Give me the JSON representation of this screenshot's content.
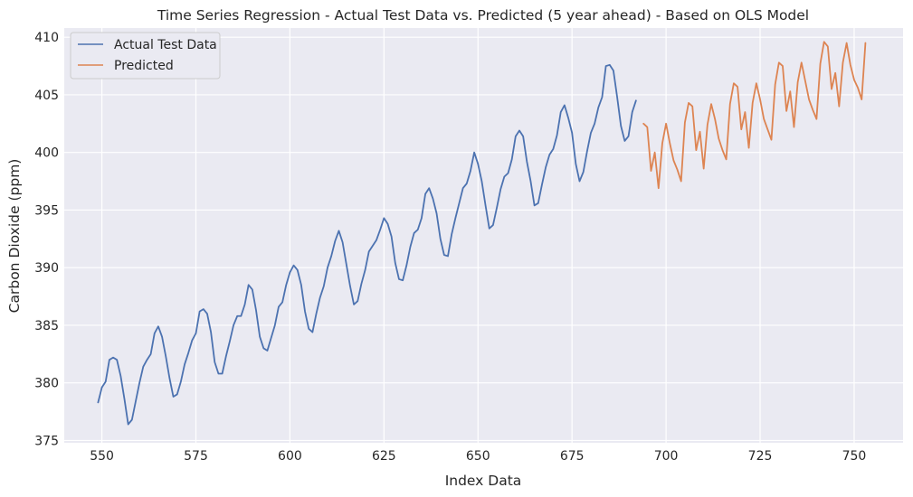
{
  "chart_data": {
    "type": "line",
    "title": "Time Series Regression - Actual Test Data vs. Predicted (5 year ahead) - Based on OLS Model",
    "xlabel": "Index Data",
    "ylabel": "Carbon Dioxide (ppm)",
    "xlim": [
      540,
      763
    ],
    "ylim": [
      374.8,
      410.8
    ],
    "xticks": [
      550,
      575,
      600,
      625,
      650,
      675,
      700,
      725,
      750
    ],
    "yticks": [
      375,
      380,
      385,
      390,
      395,
      400,
      405,
      410
    ],
    "grid": true,
    "legend_position": "top-left",
    "series": [
      {
        "name": "Actual Test Data",
        "color": "#4c72b0",
        "x": [
          549,
          550,
          551,
          552,
          553,
          554,
          555,
          556,
          557,
          558,
          559,
          560,
          561,
          562,
          563,
          564,
          565,
          566,
          567,
          568,
          569,
          570,
          571,
          572,
          573,
          574,
          575,
          576,
          577,
          578,
          579,
          580,
          581,
          582,
          583,
          584,
          585,
          586,
          587,
          588,
          589,
          590,
          591,
          592,
          593,
          594,
          595,
          596,
          597,
          598,
          599,
          600,
          601,
          602,
          603,
          604,
          605,
          606,
          607,
          608,
          609,
          610,
          611,
          612,
          613,
          614,
          615,
          616,
          617,
          618,
          619,
          620,
          621,
          622,
          623,
          624,
          625,
          626,
          627,
          628,
          629,
          630,
          631,
          632,
          633,
          634,
          635,
          636,
          637,
          638,
          639,
          640,
          641,
          642,
          643,
          644,
          645,
          646,
          647,
          648,
          649,
          650,
          651,
          652,
          653,
          654,
          655,
          656,
          657,
          658,
          659,
          660,
          661,
          662,
          663,
          664,
          665,
          666,
          667,
          668,
          669,
          670,
          671,
          672,
          673,
          674,
          675,
          676,
          677,
          678,
          679,
          680,
          681,
          682,
          683,
          684,
          685,
          686,
          687,
          688,
          689,
          690,
          691,
          692
        ],
        "values": [
          378.3,
          379.6,
          380.1,
          382.0,
          382.2,
          382.0,
          380.6,
          378.6,
          376.4,
          376.8,
          378.4,
          380.0,
          381.4,
          382.0,
          382.5,
          384.3,
          384.9,
          384.0,
          382.3,
          380.4,
          378.8,
          379.0,
          380.1,
          381.6,
          382.6,
          383.7,
          384.3,
          386.2,
          386.4,
          386.0,
          384.4,
          381.8,
          380.8,
          380.8,
          382.3,
          383.6,
          385.0,
          385.8,
          385.8,
          386.8,
          388.5,
          388.1,
          386.3,
          384.0,
          383.0,
          382.8,
          383.9,
          385.0,
          386.6,
          387.0,
          388.5,
          389.6,
          390.2,
          389.8,
          388.5,
          386.2,
          384.7,
          384.4,
          386.0,
          387.4,
          388.4,
          390.0,
          391.0,
          392.3,
          393.2,
          392.2,
          390.3,
          388.4,
          386.8,
          387.1,
          388.6,
          389.8,
          391.4,
          391.9,
          392.4,
          393.3,
          394.3,
          393.8,
          392.7,
          390.4,
          389.0,
          388.9,
          390.2,
          391.8,
          393.0,
          393.3,
          394.3,
          396.4,
          396.9,
          396.0,
          394.7,
          392.5,
          391.1,
          391.0,
          392.9,
          394.3,
          395.6,
          396.9,
          397.3,
          398.4,
          400.0,
          399.0,
          397.5,
          395.4,
          393.4,
          393.7,
          395.2,
          396.8,
          397.9,
          398.2,
          399.4,
          401.4,
          401.9,
          401.4,
          399.2,
          397.5,
          395.4,
          395.6,
          397.2,
          398.7,
          399.8,
          400.3,
          401.5,
          403.5,
          404.1,
          403.0,
          401.7,
          399.0,
          397.5,
          398.3,
          400.1,
          401.7,
          402.5,
          403.9,
          404.8,
          407.5,
          407.6,
          407.1,
          404.8,
          402.3,
          401.0,
          401.4,
          403.5,
          404.5
        ]
      },
      {
        "name": "Predicted",
        "color": "#dd8452",
        "x": [
          694,
          695,
          696,
          697,
          698,
          699,
          700,
          701,
          702,
          703,
          704,
          705,
          706,
          707,
          708,
          709,
          710,
          711,
          712,
          713,
          714,
          715,
          716,
          717,
          718,
          719,
          720,
          721,
          722,
          723,
          724,
          725,
          726,
          727,
          728,
          729,
          730,
          731,
          732,
          733,
          734,
          735,
          736,
          737,
          738,
          739,
          740,
          741,
          742,
          743,
          744,
          745,
          746,
          747,
          748,
          749,
          750,
          751,
          752,
          753
        ],
        "values": [
          402.5,
          402.2,
          398.4,
          400.0,
          396.9,
          400.8,
          402.5,
          400.8,
          399.3,
          398.5,
          397.5,
          402.6,
          404.3,
          404.0,
          400.2,
          401.8,
          398.6,
          402.4,
          404.2,
          402.9,
          401.2,
          400.2,
          399.4,
          404.2,
          406.0,
          405.7,
          402.0,
          403.5,
          400.4,
          404.3,
          406.0,
          404.6,
          402.9,
          402.0,
          401.1,
          405.9,
          407.8,
          407.5,
          403.6,
          405.3,
          402.2,
          406.1,
          407.8,
          406.2,
          404.6,
          403.7,
          402.9,
          407.7,
          409.6,
          409.2,
          405.5,
          406.9,
          404.0,
          407.8,
          409.5,
          407.6,
          406.3,
          405.6,
          404.6,
          409.5
        ]
      }
    ]
  }
}
